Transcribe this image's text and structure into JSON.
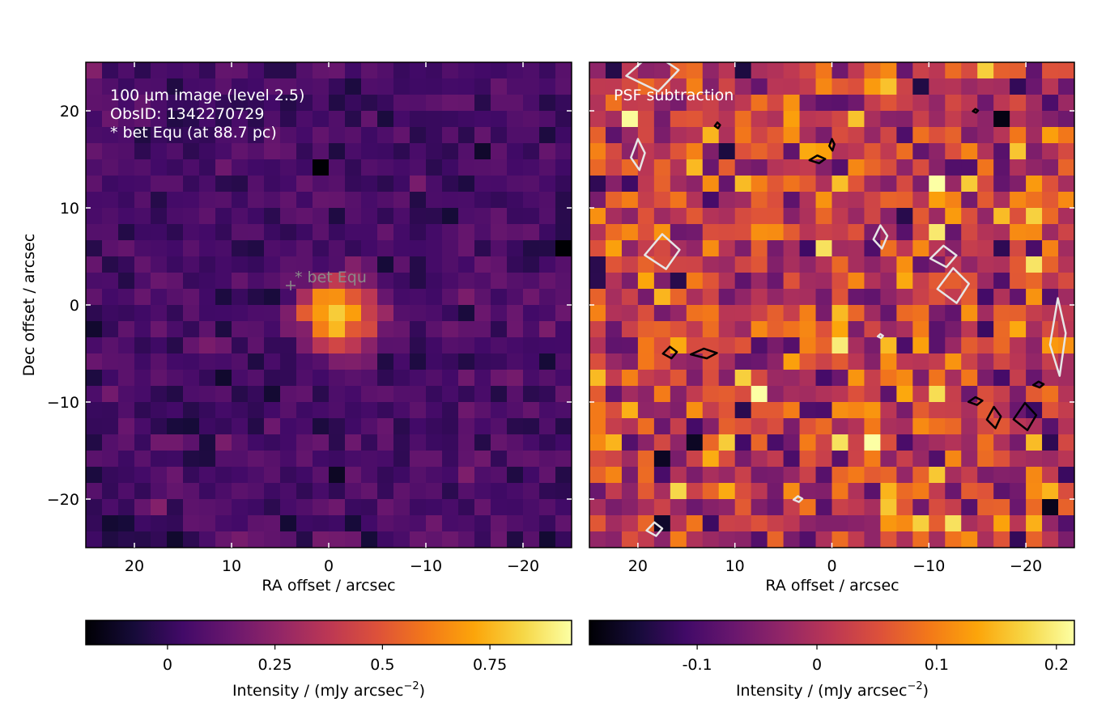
{
  "chart_data": [
    {
      "type": "heatmap",
      "panel": "left",
      "xlabel": "RA offset / arcsec",
      "ylabel": "Dec offset / arcsec",
      "xlim": [
        25,
        -25
      ],
      "ylim": [
        -25,
        25
      ],
      "x_ticks": [
        {
          "value": 20,
          "label": "20"
        },
        {
          "value": 10,
          "label": "10"
        },
        {
          "value": 0,
          "label": "0"
        },
        {
          "value": -10,
          "label": "−10"
        },
        {
          "value": -20,
          "label": "−20"
        }
      ],
      "y_ticks": [
        {
          "value": 20,
          "label": "20"
        },
        {
          "value": 10,
          "label": "10"
        },
        {
          "value": 0,
          "label": "0"
        },
        {
          "value": -10,
          "label": "−10"
        },
        {
          "value": -20,
          "label": "−20"
        }
      ],
      "annotations": [
        "100 μm image (level 2.5)",
        "ObsID: 1342270729",
        "* bet Equ (at 88.7 pc)"
      ],
      "marker": {
        "label": "* bet Equ",
        "x": 4,
        "y": 2
      },
      "colormap": "inferno",
      "grid_size": 30,
      "vmin": -0.19,
      "vmax": 0.94,
      "background_mean": 0.05,
      "background_scatter": 0.06,
      "sources": [
        {
          "x": -1,
          "y": -1,
          "peak": 0.82,
          "sigma": 2.6
        }
      ],
      "colorbar": {
        "label": "Intensity / (mJy arcsec",
        "label_exponent": "−2",
        "label_close": ")",
        "ticks": [
          {
            "value": 0,
            "label": "0"
          },
          {
            "value": 0.25,
            "label": "0.25"
          },
          {
            "value": 0.5,
            "label": "0.5"
          },
          {
            "value": 0.75,
            "label": "0.75"
          }
        ]
      },
      "grid": false
    },
    {
      "type": "heatmap",
      "panel": "right",
      "xlabel": "RA offset / arcsec",
      "ylabel": "",
      "xlim": [
        25,
        -25
      ],
      "ylim": [
        -25,
        25
      ],
      "x_ticks": [
        {
          "value": 20,
          "label": "20"
        },
        {
          "value": 10,
          "label": "10"
        },
        {
          "value": 0,
          "label": "0"
        },
        {
          "value": -10,
          "label": "−10"
        },
        {
          "value": -20,
          "label": "−20"
        }
      ],
      "annotations": [
        "PSF subtraction"
      ],
      "colormap": "inferno",
      "grid_size": 30,
      "vmin": -0.19,
      "vmax": 0.215,
      "background_mean": 0.02,
      "background_scatter": 0.07,
      "colorbar": {
        "label": "Intensity / (mJy arcsec",
        "label_exponent": "−2",
        "label_close": ")",
        "ticks": [
          {
            "value": -0.1,
            "label": "-0.1"
          },
          {
            "value": 0,
            "label": "0"
          },
          {
            "value": 0.1,
            "label": "0.1"
          },
          {
            "value": 0.2,
            "label": "0.2"
          }
        ]
      },
      "contours": [
        {
          "color": "#e6e6e6",
          "x": 18.5,
          "y": 24,
          "w": 3,
          "h": 2
        },
        {
          "color": "#e6e6e6",
          "x": 20,
          "y": 15.5,
          "w": 0.8,
          "h": 1.6
        },
        {
          "color": "#e6e6e6",
          "x": 17.5,
          "y": 5.5,
          "w": 2,
          "h": 1.8
        },
        {
          "color": "#e6e6e6",
          "x": -5,
          "y": 7,
          "w": 0.8,
          "h": 1.2
        },
        {
          "color": "#e6e6e6",
          "x": -11.5,
          "y": 5,
          "w": 1.5,
          "h": 1.1
        },
        {
          "color": "#e6e6e6",
          "x": -12.5,
          "y": 2,
          "w": 1.8,
          "h": 1.8
        },
        {
          "color": "#e6e6e6",
          "x": -23.3,
          "y": -3.3,
          "w": 0.9,
          "h": 4
        },
        {
          "color": "#e6e6e6",
          "x": 18.3,
          "y": -23.1,
          "w": 0.9,
          "h": 0.7
        },
        {
          "color": "#e6e6e6",
          "x": 3.5,
          "y": -20,
          "w": 0.5,
          "h": 0.3
        },
        {
          "color": "#e6e6e6",
          "x": -5,
          "y": -3.2,
          "w": 0.3,
          "h": 0.2
        },
        {
          "color": "#000000",
          "x": 11.8,
          "y": 18.5,
          "w": 0.3,
          "h": 0.3
        },
        {
          "color": "#000000",
          "x": 0,
          "y": 16.5,
          "w": 0.3,
          "h": 0.6
        },
        {
          "color": "#000000",
          "x": 1.5,
          "y": 15,
          "w": 0.9,
          "h": 0.4
        },
        {
          "color": "#000000",
          "x": -14.8,
          "y": 20,
          "w": 0.3,
          "h": 0.2
        },
        {
          "color": "#000000",
          "x": 16.7,
          "y": -4.9,
          "w": 0.8,
          "h": 0.6
        },
        {
          "color": "#000000",
          "x": 13.2,
          "y": -5,
          "w": 1.5,
          "h": 0.5
        },
        {
          "color": "#000000",
          "x": -14.8,
          "y": -9.9,
          "w": 0.8,
          "h": 0.4
        },
        {
          "color": "#000000",
          "x": -16.7,
          "y": -11.6,
          "w": 0.8,
          "h": 1.1
        },
        {
          "color": "#000000",
          "x": -19.9,
          "y": -11.5,
          "w": 1.3,
          "h": 1.4
        },
        {
          "color": "#000000",
          "x": -21.3,
          "y": -8.2,
          "w": 0.6,
          "h": 0.3
        }
      ],
      "grid": false
    }
  ]
}
